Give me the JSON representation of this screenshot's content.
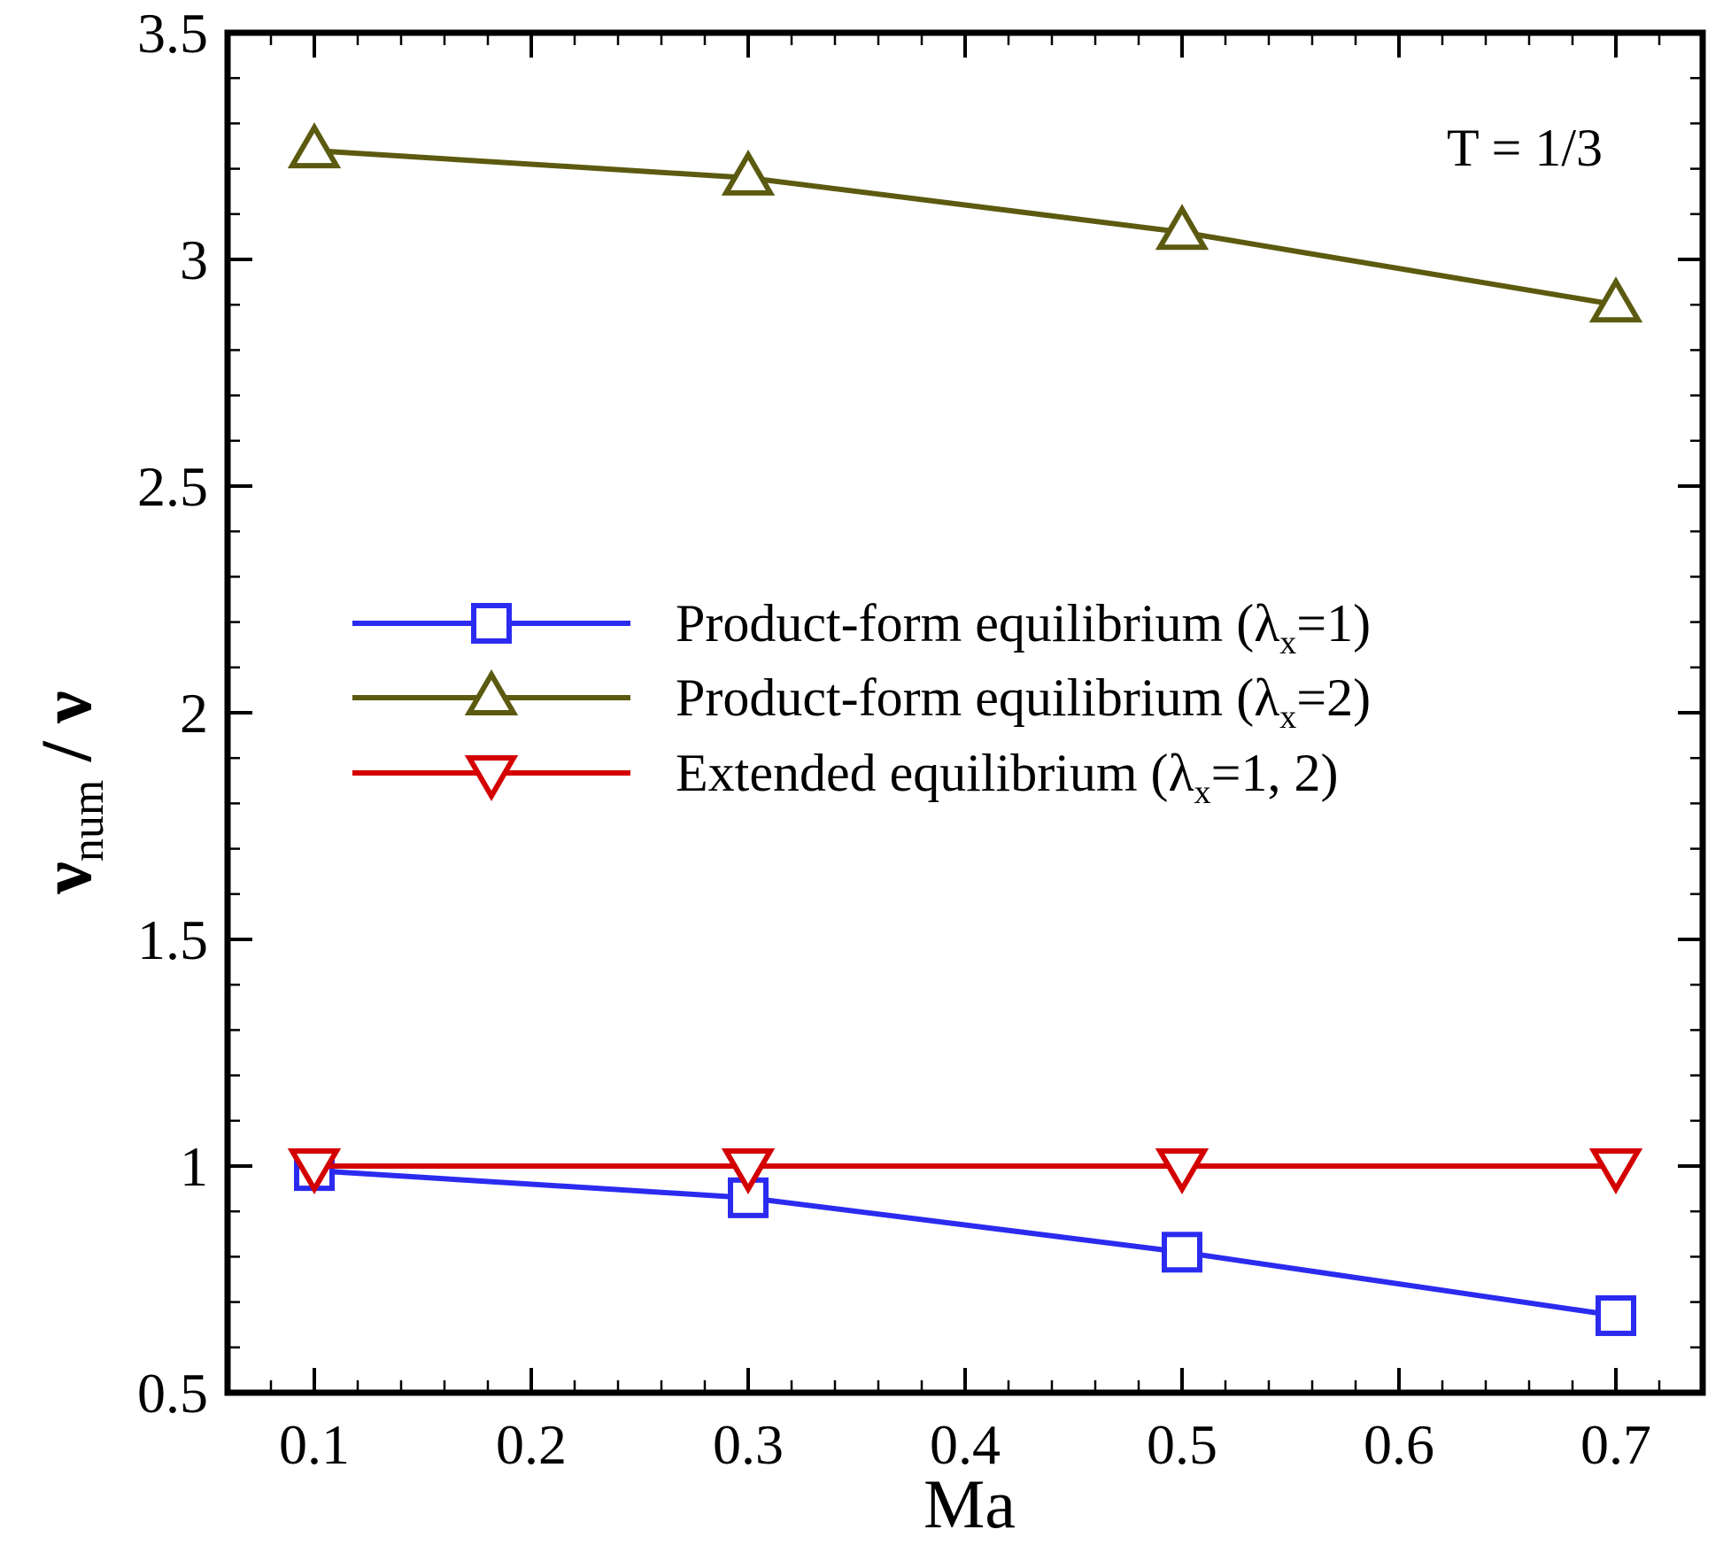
{
  "chart_data": {
    "type": "line",
    "xlabel": "Ma",
    "ylabel": {
      "main": "ν",
      "sub": "num",
      "tail": " / ν"
    },
    "annotation": "T = 1/3",
    "xlim": [
      0.06,
      0.74
    ],
    "ylim": [
      0.5,
      3.5
    ],
    "xticks": [
      0.1,
      0.2,
      0.3,
      0.4,
      0.5,
      0.6,
      0.7
    ],
    "xtick_labels": [
      "0.1",
      "0.2",
      "0.3",
      "0.4",
      "0.5",
      "0.6",
      "0.7"
    ],
    "yticks": [
      0.5,
      1,
      1.5,
      2,
      2.5,
      3,
      3.5
    ],
    "ytick_labels": [
      "0.5",
      "1",
      "1.5",
      "2",
      "2.5",
      "3",
      "3.5"
    ],
    "legend_position": "center",
    "x": [
      0.1,
      0.3,
      0.5,
      0.7
    ],
    "series": [
      {
        "name": "Product-form equilibrium (λx=1)",
        "label_pre": "Product-form equilibrium (λ",
        "label_sub": "x",
        "label_post": "=1)",
        "color": "#2b2bf0",
        "marker": "square",
        "values": [
          0.99,
          0.93,
          0.81,
          0.67
        ]
      },
      {
        "name": "Product-form equilibrium (λx=2)",
        "label_pre": "Product-form equilibrium (λ",
        "label_sub": "x",
        "label_post": "=2)",
        "color": "#5c5a10",
        "marker": "triangle-up",
        "values": [
          3.24,
          3.18,
          3.06,
          2.9
        ]
      },
      {
        "name": "Extended equilibrium (λx=1, 2)",
        "label_pre": "Extended equilibrium (λ",
        "label_sub": "x",
        "label_post": "=1, 2)",
        "color": "#d40000",
        "marker": "triangle-down",
        "values": [
          1.0,
          1.0,
          1.0,
          1.0
        ]
      }
    ]
  }
}
